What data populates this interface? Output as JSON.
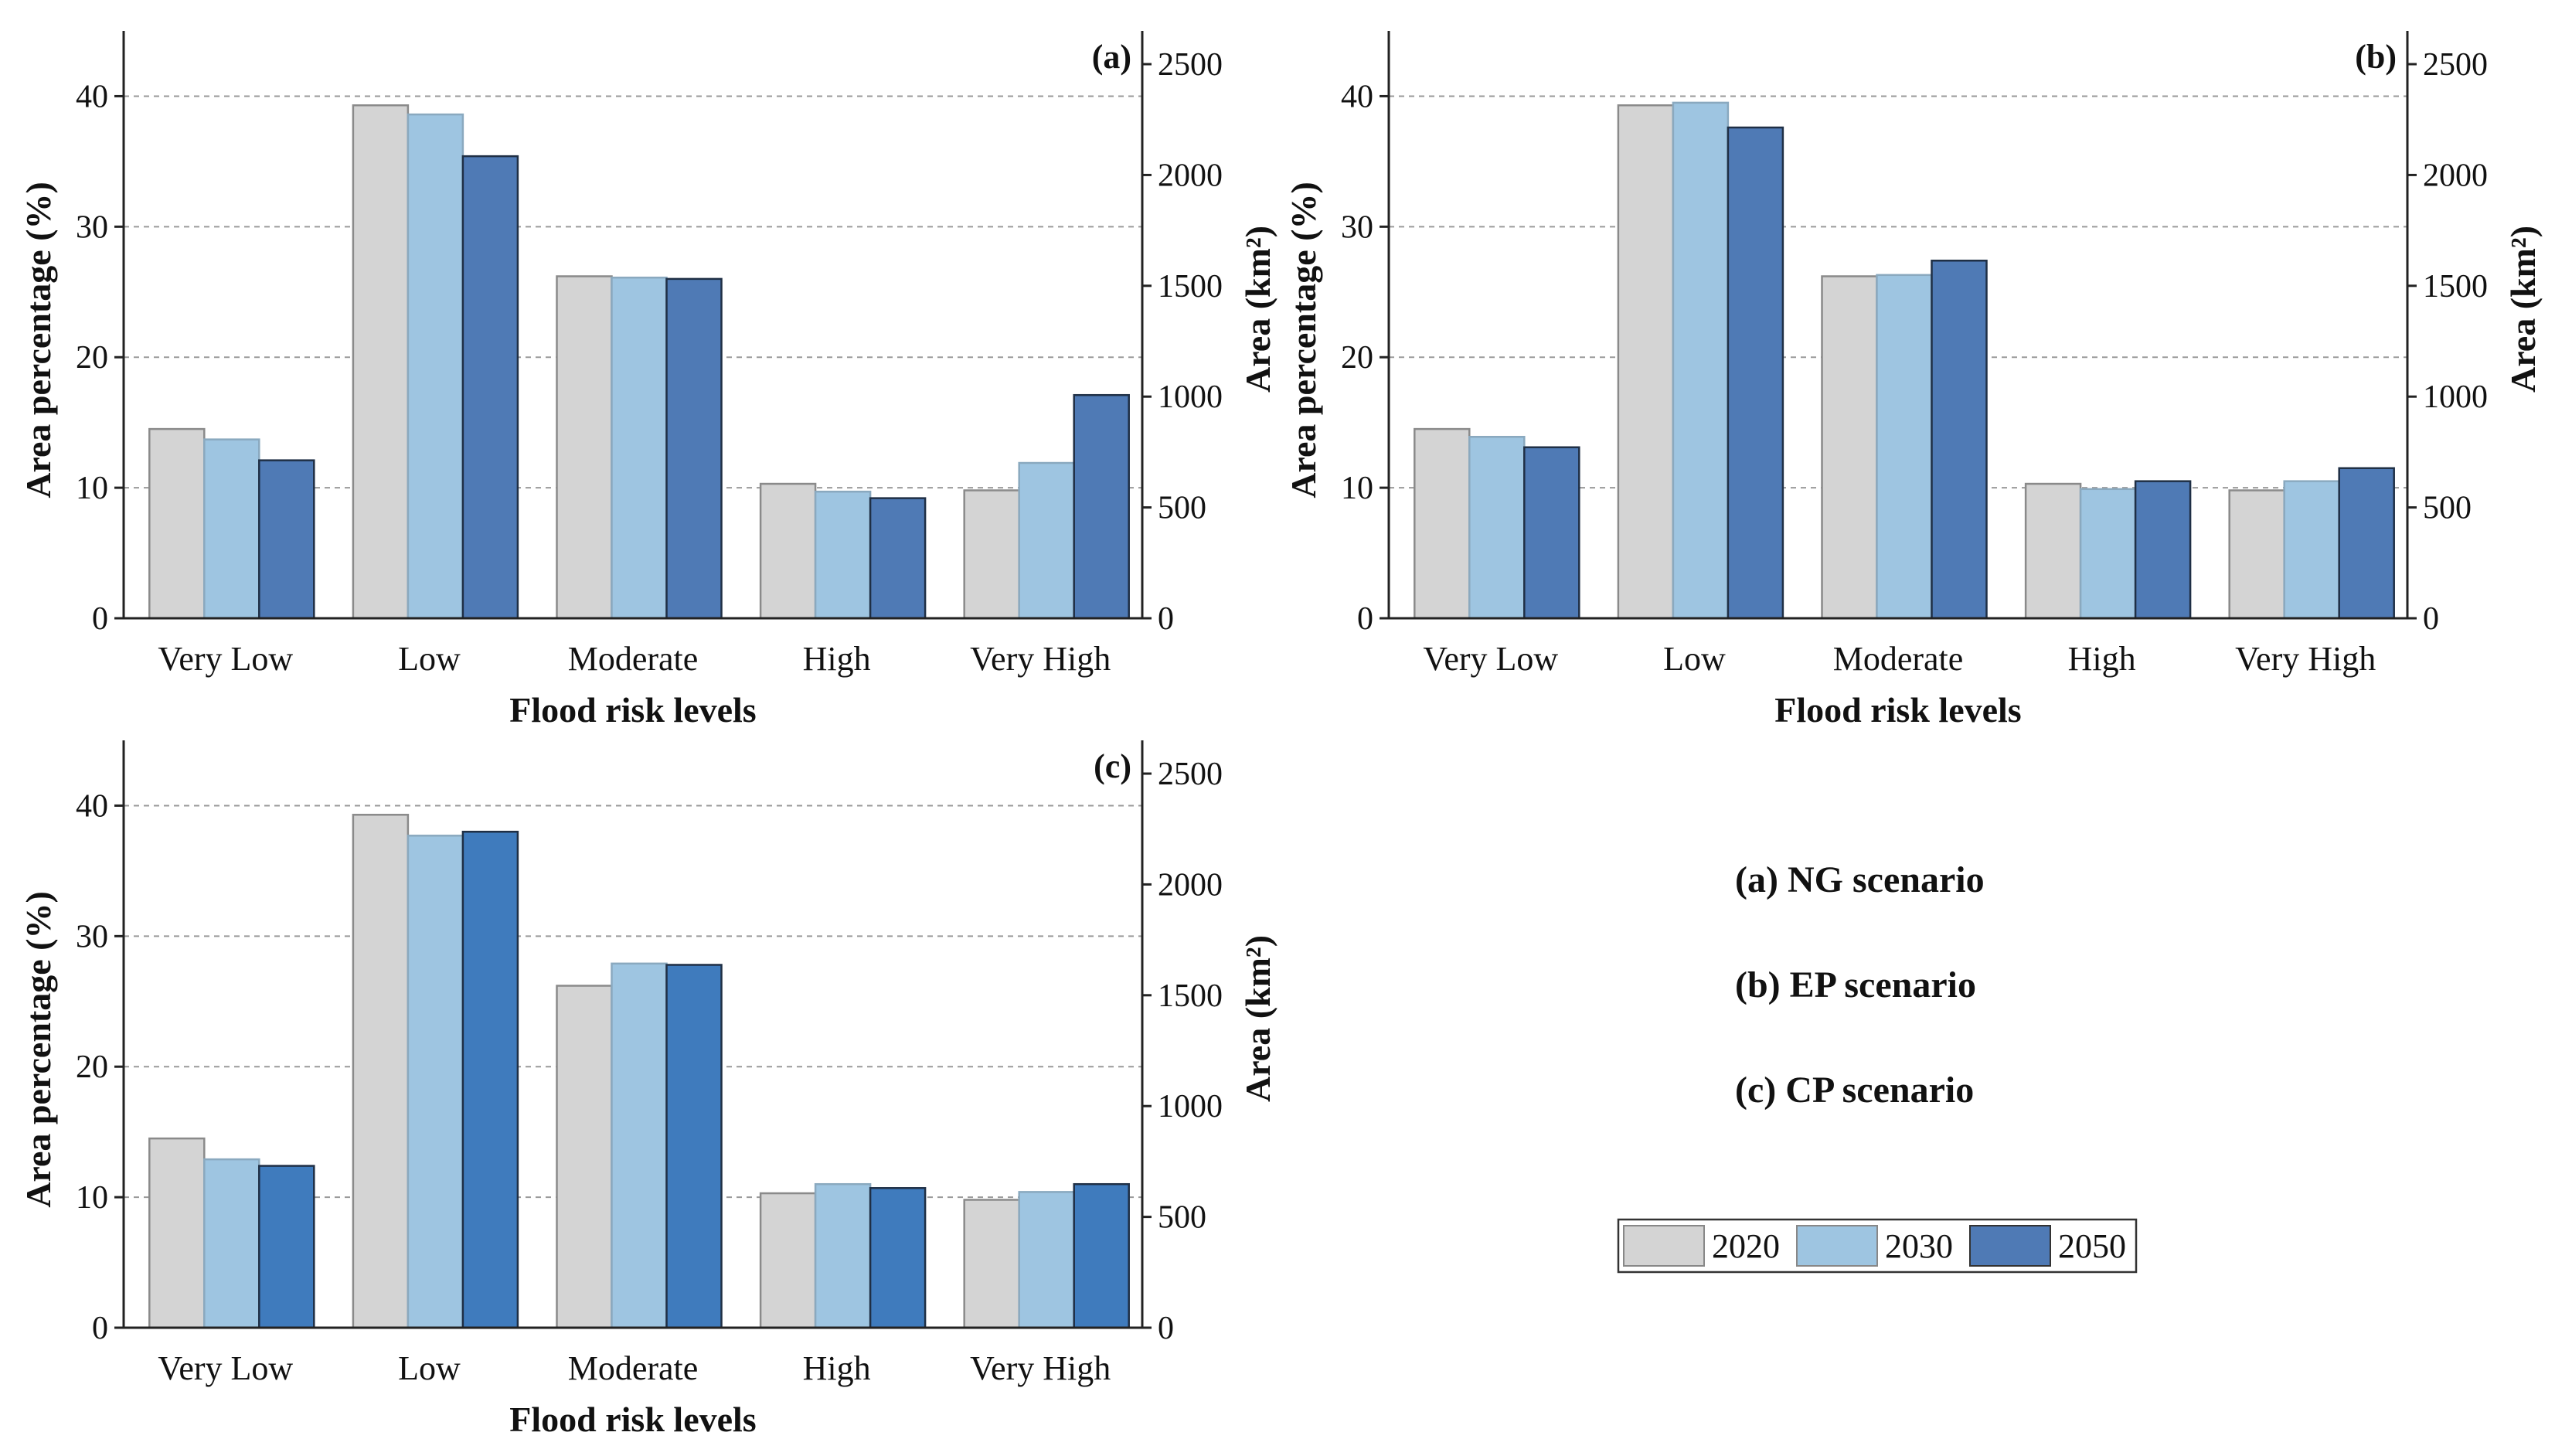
{
  "colors": {
    "2020": "#d4d4d4",
    "2030": "#9ec5e1",
    "2050": "#4f7ab5",
    "2050c": "#3f7bbd"
  },
  "legend": {
    "items": [
      "2020",
      "2030",
      "2050"
    ]
  },
  "notes": [
    "(a) NG scenario",
    "(b) EP scenario",
    "(c) CP scenario"
  ],
  "chart_data": [
    {
      "type": "bar",
      "panel_label": "(a)",
      "categories": [
        "Very Low",
        "Low",
        "Moderate",
        "High",
        "Very High"
      ],
      "series": [
        {
          "name": "2020",
          "values": [
            14.5,
            39.3,
            26.2,
            10.3,
            9.8
          ]
        },
        {
          "name": "2030",
          "values": [
            13.7,
            38.6,
            26.1,
            9.7,
            11.9
          ]
        },
        {
          "name": "2050",
          "values": [
            12.1,
            35.4,
            26.0,
            9.2,
            17.1
          ]
        }
      ],
      "xlabel": "Flood risk levels",
      "ylabel": "Area percentage (%)",
      "y2label": "Area (km²)",
      "ylim": [
        0,
        45
      ],
      "yticks": [
        0,
        10,
        20,
        30,
        40
      ],
      "y2lim": [
        0,
        2650
      ],
      "y2ticks": [
        0,
        500,
        1000,
        1500,
        2000,
        2500
      ]
    },
    {
      "type": "bar",
      "panel_label": "(b)",
      "categories": [
        "Very Low",
        "Low",
        "Moderate",
        "High",
        "Very High"
      ],
      "series": [
        {
          "name": "2020",
          "values": [
            14.5,
            39.3,
            26.2,
            10.3,
            9.8
          ]
        },
        {
          "name": "2030",
          "values": [
            13.9,
            39.5,
            26.3,
            9.9,
            10.5
          ]
        },
        {
          "name": "2050",
          "values": [
            13.1,
            37.6,
            27.4,
            10.5,
            11.5
          ]
        }
      ],
      "xlabel": "Flood risk levels",
      "ylabel": "Area percentage (%)",
      "y2label": "Area (km²)",
      "ylim": [
        0,
        45
      ],
      "yticks": [
        0,
        10,
        20,
        30,
        40
      ],
      "y2lim": [
        0,
        2650
      ],
      "y2ticks": [
        0,
        500,
        1000,
        1500,
        2000,
        2500
      ]
    },
    {
      "type": "bar",
      "panel_label": "(c)",
      "categories": [
        "Very Low",
        "Low",
        "Moderate",
        "High",
        "Very High"
      ],
      "series": [
        {
          "name": "2020",
          "values": [
            14.5,
            39.3,
            26.2,
            10.3,
            9.8
          ]
        },
        {
          "name": "2030",
          "values": [
            12.9,
            37.7,
            27.9,
            11.0,
            10.4
          ]
        },
        {
          "name": "2050",
          "values": [
            12.4,
            38.0,
            27.8,
            10.7,
            11.0
          ]
        }
      ],
      "xlabel": "Flood risk levels",
      "ylabel": "Area percentage (%)",
      "y2label": "Area (km²)",
      "ylim": [
        0,
        45
      ],
      "yticks": [
        0,
        10,
        20,
        30,
        40
      ],
      "y2lim": [
        0,
        2650
      ],
      "y2ticks": [
        0,
        500,
        1000,
        1500,
        2000,
        2500
      ]
    }
  ]
}
